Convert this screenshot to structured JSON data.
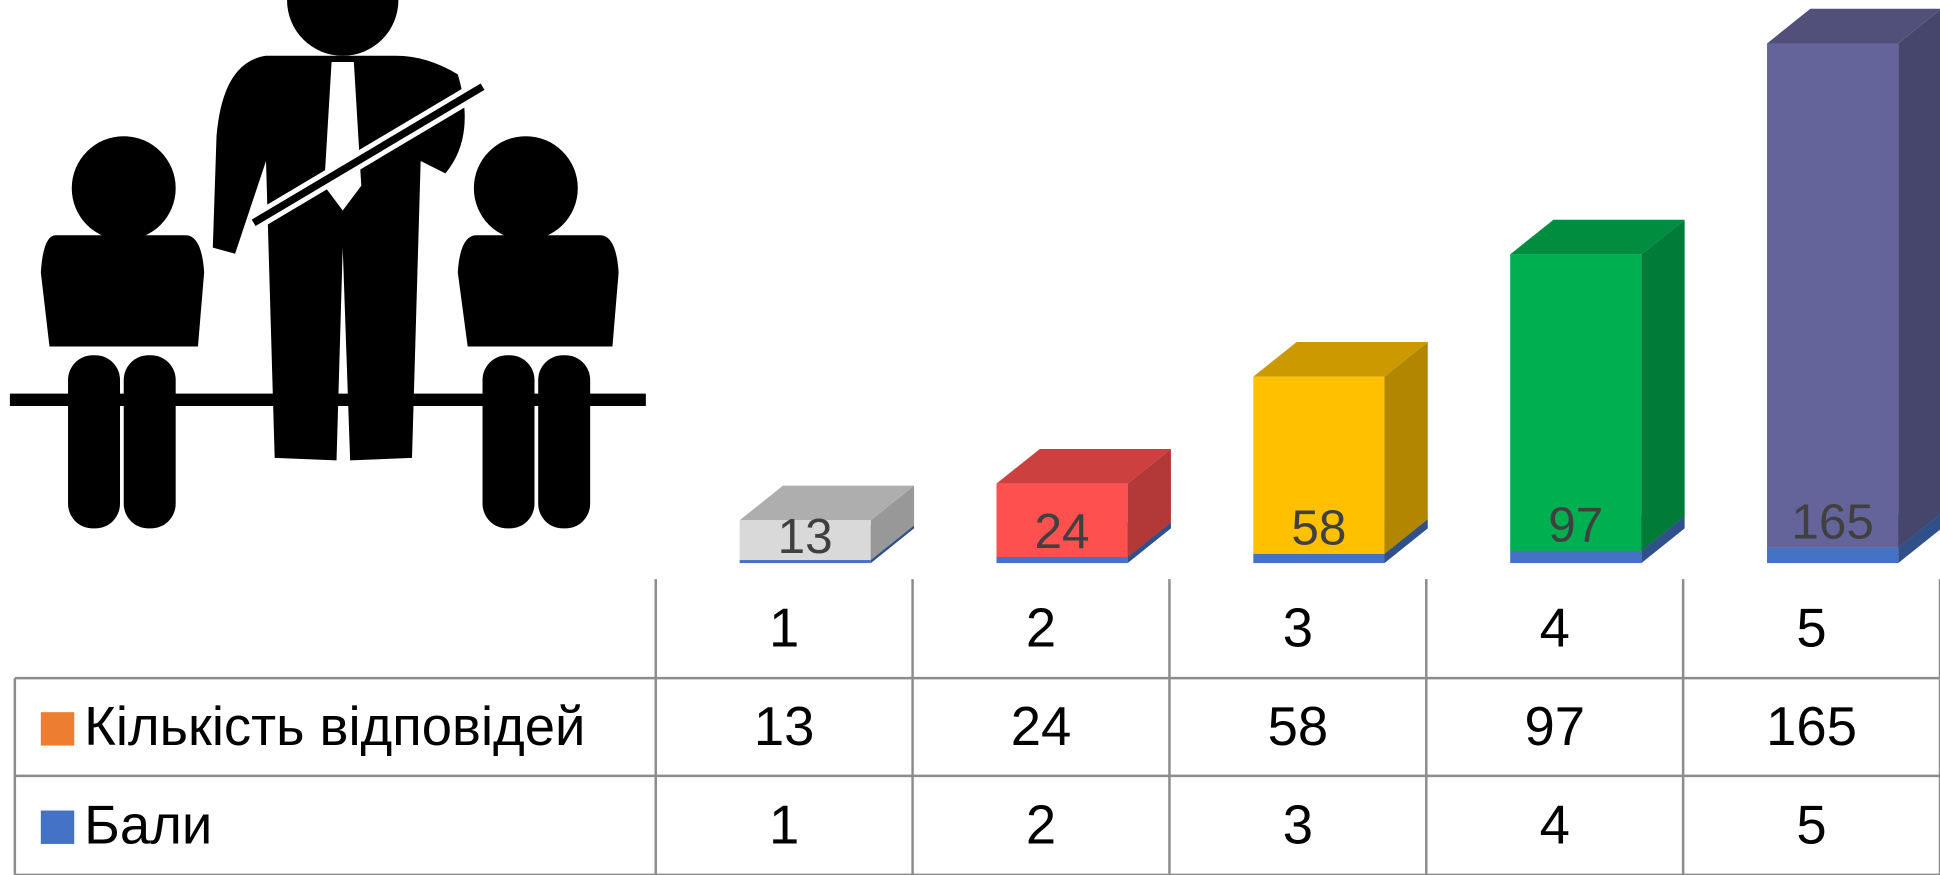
{
  "chart_data": {
    "type": "bar3d_stacked",
    "categories": [
      "1",
      "2",
      "3",
      "4",
      "5"
    ],
    "series": [
      {
        "name": "Кількість відповідей",
        "color": "#ed7d31",
        "point_colors": [
          "#d9d9d9",
          "#ff5050",
          "#ffc000",
          "#00b050",
          "#64649a"
        ],
        "values": [
          13,
          24,
          58,
          97,
          165
        ]
      },
      {
        "name": "Бали",
        "color": "#4472c4",
        "values": [
          1,
          2,
          3,
          4,
          5
        ]
      }
    ],
    "data_table": true
  }
}
